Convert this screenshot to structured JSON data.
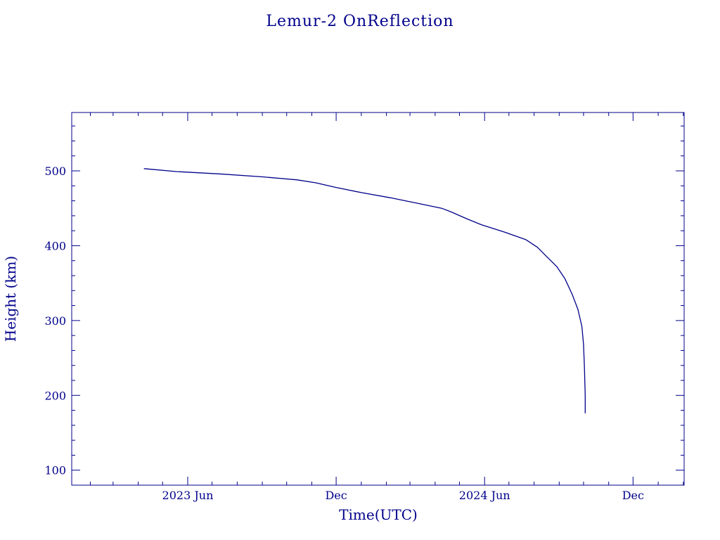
{
  "chart_data": {
    "type": "line",
    "title": "Lemur-2 OnReflection",
    "xlabel": "Time(UTC)",
    "ylabel": "Height (km)",
    "x_scale": "date",
    "xlim": [
      "2023-01-09",
      "2025-02-02"
    ],
    "ylim": [
      80,
      578
    ],
    "x_ticks": [
      {
        "date": "2023-06-01",
        "label": "2023 Jun"
      },
      {
        "date": "2023-12-01",
        "label": "Dec"
      },
      {
        "date": "2024-06-01",
        "label": "2024 Jun"
      },
      {
        "date": "2024-12-01",
        "label": "Dec"
      }
    ],
    "y_ticks": [
      100,
      200,
      300,
      400,
      500
    ],
    "grid": false,
    "color": "#00008b",
    "series": [
      {
        "points": [
          {
            "x": "2023-04-08",
            "y": 503
          },
          {
            "x": "2023-05-19",
            "y": 499
          },
          {
            "x": "2023-07-10",
            "y": 496
          },
          {
            "x": "2023-09-01",
            "y": 492
          },
          {
            "x": "2023-10-14",
            "y": 488
          },
          {
            "x": "2023-11-06",
            "y": 484
          },
          {
            "x": "2023-11-30",
            "y": 478
          },
          {
            "x": "2024-01-01",
            "y": 471
          },
          {
            "x": "2024-02-06",
            "y": 464
          },
          {
            "x": "2024-03-13",
            "y": 456
          },
          {
            "x": "2024-04-09",
            "y": 450
          },
          {
            "x": "2024-04-21",
            "y": 445
          },
          {
            "x": "2024-05-10",
            "y": 436
          },
          {
            "x": "2024-05-28",
            "y": 428
          },
          {
            "x": "2024-06-26",
            "y": 418
          },
          {
            "x": "2024-07-22",
            "y": 408
          },
          {
            "x": "2024-08-05",
            "y": 398
          },
          {
            "x": "2024-08-17",
            "y": 385
          },
          {
            "x": "2024-08-29",
            "y": 372
          },
          {
            "x": "2024-09-08",
            "y": 356
          },
          {
            "x": "2024-09-17",
            "y": 335
          },
          {
            "x": "2024-09-24",
            "y": 315
          },
          {
            "x": "2024-09-29",
            "y": 292
          },
          {
            "x": "2024-10-01",
            "y": 268
          },
          {
            "x": "2024-10-02",
            "y": 240
          },
          {
            "x": "2024-10-03",
            "y": 200
          },
          {
            "x": "2024-10-03",
            "y": 176
          }
        ]
      }
    ]
  }
}
